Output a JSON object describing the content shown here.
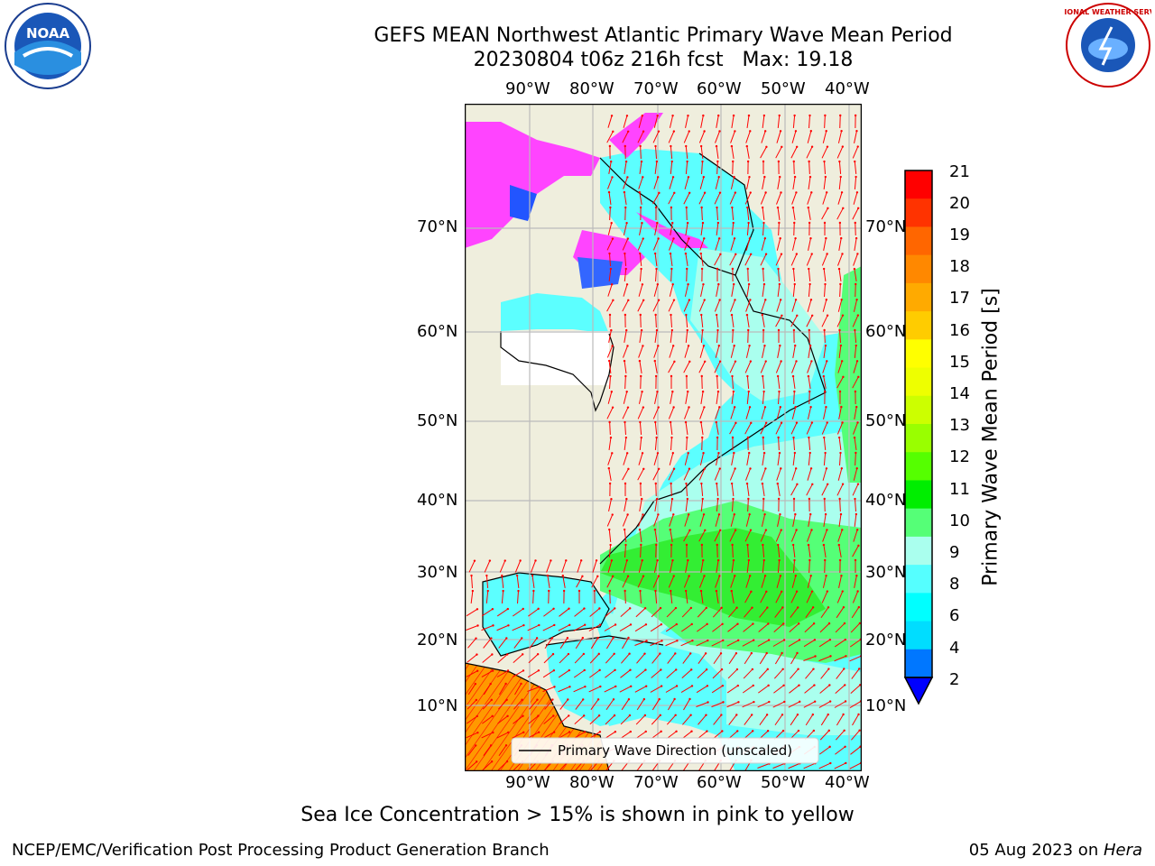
{
  "title": "GEFS MEAN Northwest Atlantic Primary Wave Mean Period",
  "subtitle": "20230804 t06z 216h fcst   Max: 19.18",
  "lon_ticks": [
    "90°W",
    "80°W",
    "70°W",
    "60°W",
    "50°W",
    "40°W"
  ],
  "lat_ticks_left": [
    "70°N",
    "60°N",
    "50°N",
    "40°N",
    "30°N",
    "20°N",
    "10°N"
  ],
  "lat_ticks_right": [
    "70°N",
    "60°N",
    "50°N",
    "40°N",
    "30°N",
    "20°N",
    "10°N"
  ],
  "colorbar": {
    "label": "Primary Wave Mean Period [s]",
    "ticks": [
      "21",
      "20",
      "19",
      "18",
      "17",
      "16",
      "15",
      "14",
      "13",
      "12",
      "11",
      "10",
      "9",
      "8",
      "6",
      "4",
      "2"
    ],
    "colors": [
      "#ff0000",
      "#ff3300",
      "#ff6600",
      "#ff8800",
      "#ffaa00",
      "#ffcc00",
      "#ffff00",
      "#eeff00",
      "#ccff00",
      "#99ff00",
      "#55ff00",
      "#00ee00",
      "#55ff77",
      "#aaffee",
      "#55ffff",
      "#00ffff",
      "#00ddff",
      "#0077ff"
    ],
    "extend_color": "#0000ff"
  },
  "legend": {
    "label": "Primary Wave Direction (unscaled)"
  },
  "sea_ice_note": "Sea Ice Concentration > 15% is shown in pink to yellow",
  "footer": {
    "left": "NCEP/EMC/Verification Post Processing Product Generation Branch",
    "date": "05 Aug 2023 on ",
    "host": "Hera"
  },
  "logos": {
    "left": "NOAA",
    "right": "NATIONAL WEATHER SERVICE"
  },
  "colors": {
    "land": "#efeedd",
    "ocean_base": "#5cffff",
    "arrow": "#ff0000",
    "grid": "#bbbbbb"
  }
}
